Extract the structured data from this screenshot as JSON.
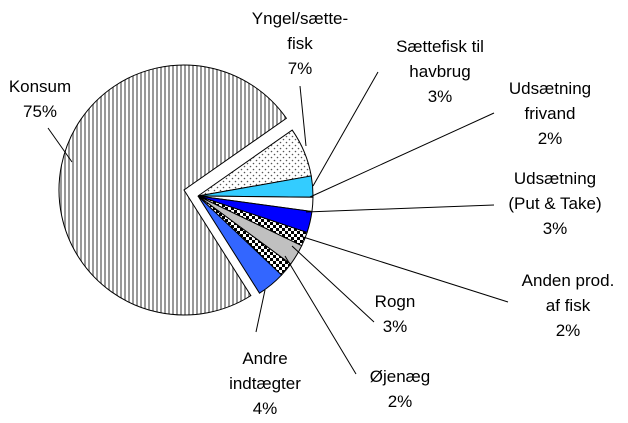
{
  "chart_data": {
    "type": "pie",
    "categories": [
      [
        "Konsum"
      ],
      [
        "Yngel/sætte-",
        "fisk"
      ],
      [
        "Sættefisk til",
        "havbrug"
      ],
      [
        "Udsætning",
        "frivand"
      ],
      [
        "Udsætning",
        "(Put & Take)"
      ],
      [
        "Anden prod.",
        "af fisk"
      ],
      [
        "Rogn"
      ],
      [
        "Øjenæg"
      ],
      [
        "Andre",
        "indtægter"
      ]
    ],
    "values": [
      75,
      7,
      3,
      2,
      3,
      2,
      3,
      2,
      4
    ],
    "value_labels": [
      "75%",
      "7%",
      "3%",
      "2%",
      "3%",
      "2%",
      "3%",
      "2%",
      "4%"
    ],
    "colors": [
      "hatch",
      "dots",
      "#33ccff",
      "#ffffff",
      "#0000ff",
      "checker",
      "#c0c0c0",
      "checker",
      "#3366ff"
    ]
  }
}
